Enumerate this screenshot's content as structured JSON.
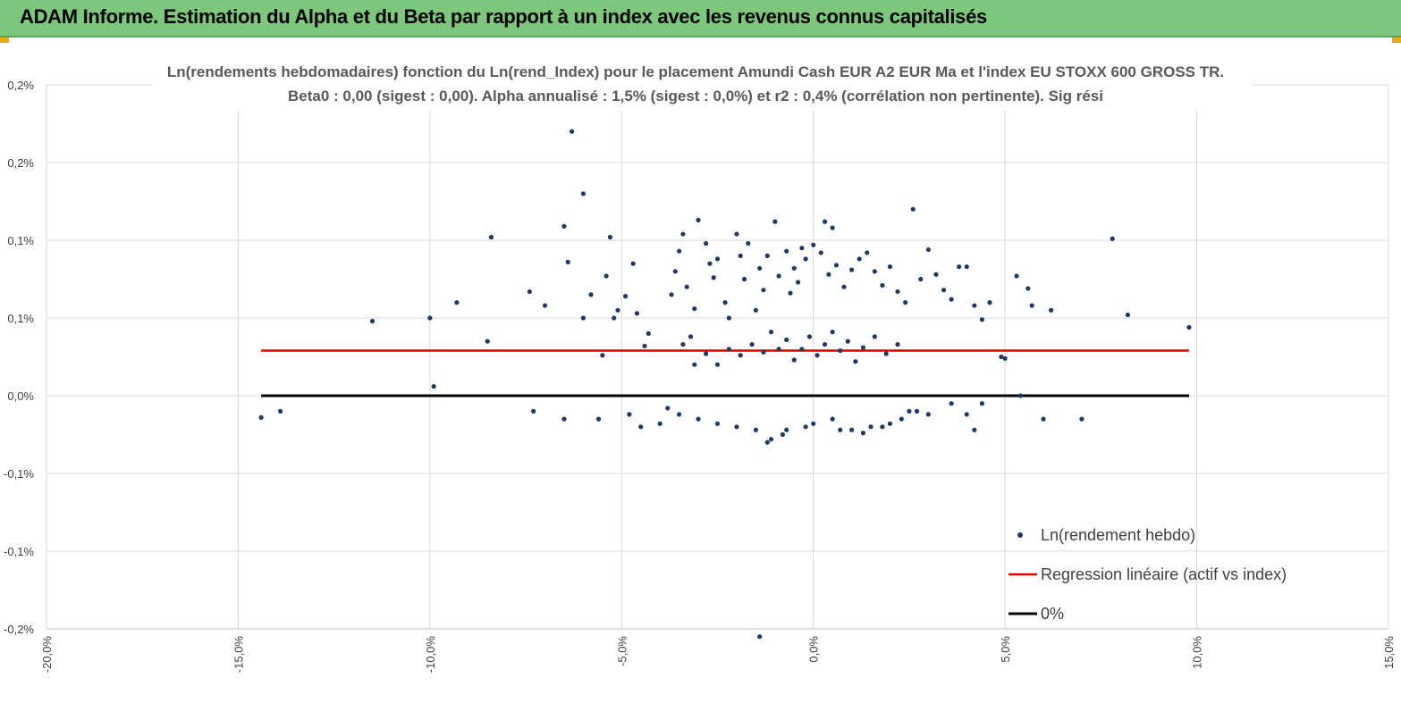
{
  "header": {
    "title": "ADAM Informe. Estimation du Alpha et du Beta par rapport à un index avec les revenus connus capitalisés"
  },
  "colors": {
    "banner": "#7dc77c",
    "points": "#1f3864",
    "regression": "#e00000",
    "zero": "#000000",
    "grid": "#d9d9d9"
  },
  "chart_data": {
    "type": "scatter",
    "title": [
      "Ln(rendements hebdomadaires) fonction du Ln(rend_Index) pour le placement Amundi Cash EUR A2 EUR Ma et l'index EU STOXX 600 GROSS TR.",
      "Beta0 : 0,00 (sigest : 0,00). Alpha annualisé : 1,5% (sigest : 0,0%) et r2 : 0,4% (corrélation non pertinente). Sig rési"
    ],
    "xlim": [
      -0.2,
      0.15
    ],
    "ylim": [
      -0.0015,
      0.002
    ],
    "x_ticks": [
      {
        "v": -0.2,
        "label": "-20,0%"
      },
      {
        "v": -0.15,
        "label": "-15,0%"
      },
      {
        "v": -0.1,
        "label": "-10,0%"
      },
      {
        "v": -0.05,
        "label": "-5,0%"
      },
      {
        "v": 0.0,
        "label": "0,0%"
      },
      {
        "v": 0.05,
        "label": "5,0%"
      },
      {
        "v": 0.1,
        "label": "10,0%"
      },
      {
        "v": 0.15,
        "label": "15,0%"
      }
    ],
    "y_ticks": [
      {
        "v": 0.002,
        "label": "0,2%"
      },
      {
        "v": 0.0015,
        "label": "0,2%"
      },
      {
        "v": 0.001,
        "label": "0,1%"
      },
      {
        "v": 0.0005,
        "label": "0,1%"
      },
      {
        "v": 0.0,
        "label": "0,0%"
      },
      {
        "v": -0.0005,
        "label": "-0,1%"
      },
      {
        "v": -0.001,
        "label": "-0,1%"
      },
      {
        "v": -0.0015,
        "label": "-0,2%"
      }
    ],
    "series": [
      {
        "name": "Ln(rendement hebdo)",
        "kind": "scatter",
        "points": [
          [
            -0.144,
            -0.00014
          ],
          [
            -0.139,
            -0.0001
          ],
          [
            -0.115,
            0.00048
          ],
          [
            -0.1,
            0.0005
          ],
          [
            -0.099,
            6e-05
          ],
          [
            -0.093,
            0.0006
          ],
          [
            -0.085,
            0.00035
          ],
          [
            -0.084,
            0.00102
          ],
          [
            -0.073,
            -0.0001
          ],
          [
            -0.074,
            0.00067
          ],
          [
            -0.07,
            0.00058
          ],
          [
            -0.065,
            0.00109
          ],
          [
            -0.064,
            0.00086
          ],
          [
            -0.063,
            0.0017
          ],
          [
            -0.06,
            0.0013
          ],
          [
            -0.06,
            0.0005
          ],
          [
            -0.058,
            0.00065
          ],
          [
            -0.055,
            0.00026
          ],
          [
            -0.054,
            0.00077
          ],
          [
            -0.053,
            0.00102
          ],
          [
            -0.052,
            0.0005
          ],
          [
            -0.051,
            0.00055
          ],
          [
            -0.049,
            0.00064
          ],
          [
            -0.047,
            0.00085
          ],
          [
            -0.046,
            0.00053
          ],
          [
            -0.044,
            0.00032
          ],
          [
            -0.043,
            0.0004
          ],
          [
            -0.065,
            -0.00015
          ],
          [
            -0.056,
            -0.00015
          ],
          [
            -0.048,
            -0.00012
          ],
          [
            -0.045,
            -0.0002
          ],
          [
            -0.04,
            -0.00018
          ],
          [
            -0.037,
            0.00065
          ],
          [
            -0.036,
            0.0008
          ],
          [
            -0.035,
            0.00093
          ],
          [
            -0.034,
            0.00104
          ],
          [
            -0.033,
            0.0007
          ],
          [
            -0.032,
            0.00038
          ],
          [
            -0.031,
            0.00056
          ],
          [
            -0.03,
            0.00113
          ],
          [
            -0.028,
            0.00098
          ],
          [
            -0.027,
            0.00085
          ],
          [
            -0.026,
            0.00076
          ],
          [
            -0.025,
            0.00088
          ],
          [
            -0.023,
            0.0006
          ],
          [
            -0.022,
            0.0005
          ],
          [
            -0.02,
            0.00104
          ],
          [
            -0.019,
            0.0009
          ],
          [
            -0.018,
            0.00075
          ],
          [
            -0.017,
            0.00098
          ],
          [
            -0.015,
            0.00055
          ],
          [
            -0.014,
            0.00082
          ],
          [
            -0.013,
            0.00068
          ],
          [
            -0.012,
            0.0009
          ],
          [
            -0.01,
            0.00112
          ],
          [
            -0.009,
            0.00077
          ],
          [
            -0.007,
            0.00093
          ],
          [
            -0.006,
            0.00066
          ],
          [
            -0.005,
            0.00082
          ],
          [
            -0.004,
            0.00073
          ],
          [
            -0.003,
            0.00095
          ],
          [
            -0.002,
            0.00088
          ],
          [
            0.0,
            0.00097
          ],
          [
            0.002,
            0.00092
          ],
          [
            0.003,
            0.00112
          ],
          [
            0.004,
            0.00078
          ],
          [
            0.005,
            0.00108
          ],
          [
            0.006,
            0.00084
          ],
          [
            0.008,
            0.0007
          ],
          [
            0.01,
            0.00081
          ],
          [
            0.012,
            0.00088
          ],
          [
            0.014,
            0.00092
          ],
          [
            0.016,
            0.0008
          ],
          [
            0.018,
            0.00071
          ],
          [
            0.02,
            0.00083
          ],
          [
            0.022,
            0.00067
          ],
          [
            0.024,
            0.0006
          ],
          [
            0.026,
            0.0012
          ],
          [
            0.028,
            0.00075
          ],
          [
            0.03,
            0.00094
          ],
          [
            0.032,
            0.00078
          ],
          [
            0.034,
            0.00068
          ],
          [
            0.036,
            0.00062
          ],
          [
            0.038,
            0.00083
          ],
          [
            0.04,
            0.00083
          ],
          [
            0.042,
            0.00058
          ],
          [
            0.044,
            0.00049
          ],
          [
            0.046,
            0.0006
          ],
          [
            0.05,
            0.00024
          ],
          [
            0.053,
            0.00077
          ],
          [
            0.056,
            0.00069
          ],
          [
            0.057,
            0.00058
          ],
          [
            0.06,
            -0.00015
          ],
          [
            0.062,
            0.00055
          ],
          [
            0.07,
            -0.00015
          ],
          [
            0.078,
            0.00101
          ],
          [
            0.082,
            0.00052
          ],
          [
            0.098,
            0.00044
          ],
          [
            0.054,
            0.0
          ],
          [
            0.049,
            0.00025
          ],
          [
            0.044,
            -5e-05
          ],
          [
            0.042,
            -0.00022
          ],
          [
            0.04,
            -0.00012
          ],
          [
            0.036,
            -5e-05
          ],
          [
            0.03,
            -0.00012
          ],
          [
            0.025,
            -0.0001
          ],
          [
            0.02,
            -0.00018
          ],
          [
            0.015,
            -0.0002
          ],
          [
            0.01,
            -0.00022
          ],
          [
            0.005,
            -0.00015
          ],
          [
            -0.002,
            -0.0002
          ],
          [
            -0.008,
            -0.00025
          ],
          [
            -0.012,
            -0.0003
          ],
          [
            -0.015,
            -0.00022
          ],
          [
            -0.02,
            -0.0002
          ],
          [
            -0.025,
            -0.00018
          ],
          [
            -0.03,
            -0.00015
          ],
          [
            -0.035,
            -0.00012
          ],
          [
            -0.038,
            -8e-05
          ],
          [
            -0.014,
            -0.00155
          ],
          [
            -0.011,
            -0.00028
          ],
          [
            -0.007,
            -0.00022
          ],
          [
            0.0,
            -0.00018
          ],
          [
            0.007,
            -0.00022
          ],
          [
            0.013,
            -0.00024
          ],
          [
            0.018,
            -0.0002
          ],
          [
            0.023,
            -0.00015
          ],
          [
            0.027,
            -0.0001
          ],
          [
            0.022,
            0.00033
          ],
          [
            0.019,
            0.00027
          ],
          [
            0.016,
            0.00038
          ],
          [
            0.013,
            0.00031
          ],
          [
            0.011,
            0.00022
          ],
          [
            0.009,
            0.00035
          ],
          [
            0.007,
            0.00029
          ],
          [
            0.005,
            0.00041
          ],
          [
            0.003,
            0.00033
          ],
          [
            0.001,
            0.00026
          ],
          [
            -0.001,
            0.00038
          ],
          [
            -0.003,
            0.0003
          ],
          [
            -0.005,
            0.00023
          ],
          [
            -0.007,
            0.00036
          ],
          [
            -0.009,
            0.0003
          ],
          [
            -0.011,
            0.00041
          ],
          [
            -0.013,
            0.00028
          ],
          [
            -0.016,
            0.00033
          ],
          [
            -0.019,
            0.00026
          ],
          [
            -0.022,
            0.0003
          ],
          [
            -0.025,
            0.0002
          ],
          [
            -0.028,
            0.00027
          ],
          [
            -0.031,
            0.0002
          ],
          [
            -0.034,
            0.00033
          ]
        ]
      },
      {
        "name": "Regression linéaire (actif vs index)",
        "kind": "line",
        "x": [
          -0.144,
          0.098
        ],
        "y": [
          0.00029,
          0.00029
        ]
      },
      {
        "name": "0%",
        "kind": "line",
        "x": [
          -0.144,
          0.098
        ],
        "y": [
          0.0,
          0.0
        ]
      }
    ],
    "legend_position": "bottom-right"
  }
}
